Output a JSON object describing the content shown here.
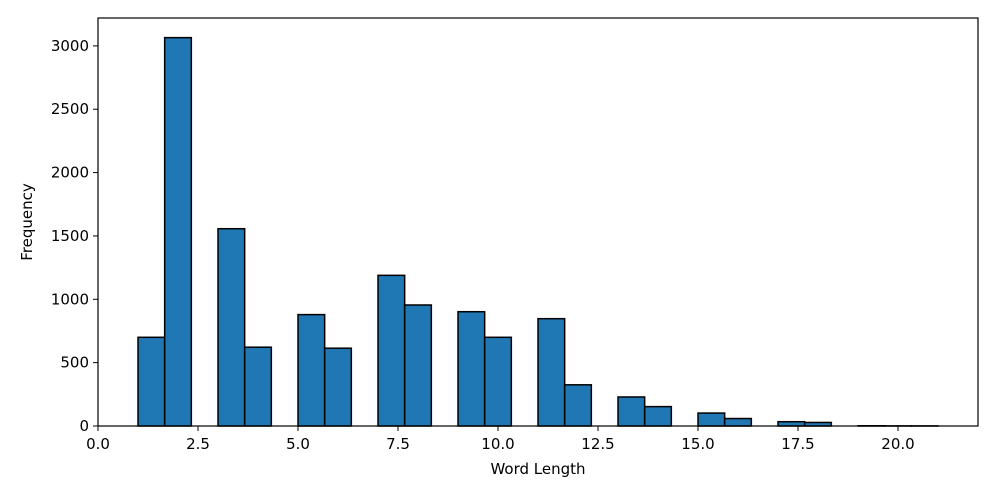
{
  "chart_data": {
    "type": "bar",
    "title": "",
    "xlabel": "Word Length",
    "ylabel": "Frequency",
    "xlim": [
      0,
      22
    ],
    "ylim": [
      0,
      3220
    ],
    "x_ticks": [
      0.0,
      2.5,
      5.0,
      7.5,
      10.0,
      12.5,
      15.0,
      17.5,
      20.0
    ],
    "x_tick_labels": [
      "0.0",
      "2.5",
      "5.0",
      "7.5",
      "10.0",
      "12.5",
      "15.0",
      "17.5",
      "20.0"
    ],
    "y_ticks": [
      0,
      500,
      1000,
      1500,
      2000,
      2500,
      3000
    ],
    "y_tick_labels": [
      "0",
      "500",
      "1000",
      "1500",
      "2000",
      "2500",
      "3000"
    ],
    "bin_width": 0.6667,
    "bins": [
      {
        "x0": 1.0,
        "x1": 1.6667,
        "value": 700
      },
      {
        "x0": 1.6667,
        "x1": 2.3333,
        "value": 3065
      },
      {
        "x0": 3.0,
        "x1": 3.6667,
        "value": 1557
      },
      {
        "x0": 3.6667,
        "x1": 4.3333,
        "value": 622
      },
      {
        "x0": 5.0,
        "x1": 5.6667,
        "value": 879
      },
      {
        "x0": 5.6667,
        "x1": 6.3333,
        "value": 614
      },
      {
        "x0": 7.0,
        "x1": 7.6667,
        "value": 1189
      },
      {
        "x0": 7.6667,
        "x1": 8.3333,
        "value": 955
      },
      {
        "x0": 9.0,
        "x1": 9.6667,
        "value": 902
      },
      {
        "x0": 9.6667,
        "x1": 10.3333,
        "value": 700
      },
      {
        "x0": 11.0,
        "x1": 11.6667,
        "value": 847
      },
      {
        "x0": 11.6667,
        "x1": 12.3333,
        "value": 325
      },
      {
        "x0": 13.0,
        "x1": 13.6667,
        "value": 229
      },
      {
        "x0": 13.6667,
        "x1": 14.3333,
        "value": 153
      },
      {
        "x0": 15.0,
        "x1": 15.6667,
        "value": 102
      },
      {
        "x0": 15.6667,
        "x1": 16.3333,
        "value": 59
      },
      {
        "x0": 17.0,
        "x1": 17.6667,
        "value": 34
      },
      {
        "x0": 17.6667,
        "x1": 18.3333,
        "value": 28
      },
      {
        "x0": 19.0,
        "x1": 19.6667,
        "value": 2
      },
      {
        "x0": 19.6667,
        "x1": 20.3333,
        "value": 1
      },
      {
        "x0": 20.3333,
        "x1": 21.0,
        "value": 1
      }
    ],
    "bar_color": "#1f77b4",
    "edge_color": "#000000",
    "grid": false,
    "legend": "none"
  }
}
